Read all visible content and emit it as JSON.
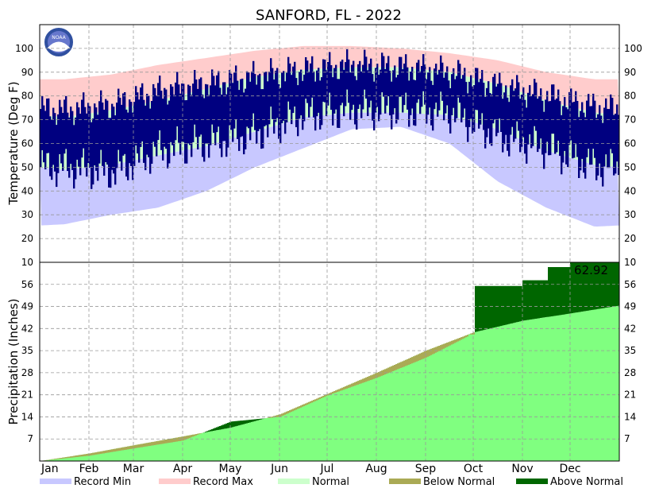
{
  "chart_data": [
    {
      "type": "area",
      "title": "SANFORD, FL - 2022",
      "ylabel": "Temperature (Deg F)",
      "xlabel": "",
      "ylim": [
        10,
        110
      ],
      "y_ticks": [
        20,
        30,
        40,
        50,
        60,
        70,
        80,
        90,
        100
      ],
      "grid": true,
      "months": [
        "Jan",
        "Feb",
        "Mar",
        "Apr",
        "May",
        "Jun",
        "Jul",
        "Aug",
        "Sep",
        "Oct",
        "Nov",
        "Dec"
      ],
      "month_normal_high": [
        71,
        74,
        78,
        83,
        88,
        91,
        92,
        92,
        90,
        85,
        78,
        73
      ],
      "month_normal_low": [
        49,
        51,
        55,
        59,
        65,
        71,
        73,
        73,
        72,
        66,
        57,
        51
      ],
      "month_record_high": [
        87,
        89,
        93,
        96,
        99,
        101,
        101,
        100,
        98,
        95,
        90,
        87
      ],
      "month_record_low": [
        26,
        30,
        33,
        40,
        50,
        58,
        66,
        67,
        60,
        44,
        33,
        25
      ],
      "month_actual_high": [
        74,
        76,
        82,
        85,
        88,
        91,
        93,
        92,
        90,
        84,
        80,
        75
      ],
      "month_actual_low": [
        50,
        48,
        57,
        60,
        64,
        72,
        74,
        74,
        73,
        63,
        58,
        50
      ]
    },
    {
      "type": "area",
      "ylabel": "Precipitation (Inches)",
      "xlabel": "",
      "ylim": [
        0,
        63
      ],
      "y_ticks": [
        7,
        14,
        21,
        28,
        35,
        42,
        49,
        56
      ],
      "grid": true,
      "x_ticks": [
        "Jan",
        "Feb",
        "Mar",
        "Apr",
        "May",
        "Jun",
        "Jul",
        "Aug",
        "Sep",
        "Oct",
        "Nov",
        "Dec"
      ],
      "annotation": "62.92",
      "series": [
        {
          "name": "Normal",
          "values": [
            0,
            2.4,
            5.0,
            7.8,
            10.6,
            14.8,
            21.3,
            28.0,
            35.0,
            40.8,
            44.5,
            46.8,
            49.3
          ]
        },
        {
          "name": "Observed",
          "values": [
            0,
            1.7,
            4.0,
            6.5,
            12.5,
            14.0,
            20.8,
            26.4,
            32.8,
            40.5,
            57.0,
            63.0,
            63.0
          ]
        }
      ],
      "cumulative_day_points": [
        0,
        31,
        59,
        90,
        120,
        151,
        181,
        212,
        243,
        273,
        304,
        334,
        365
      ]
    }
  ],
  "legend": {
    "items": [
      {
        "label": "Record Min",
        "color": "#c8c8ff"
      },
      {
        "label": "Record Max",
        "color": "#ffcccc"
      },
      {
        "label": "Normal",
        "color": "#ccffcc"
      },
      {
        "label": "Below Normal",
        "color": "#aaaa55"
      },
      {
        "label": "Above Normal",
        "color": "#006600"
      }
    ]
  },
  "colors": {
    "actual": "#000080",
    "precip_normal": "#80ff80",
    "precip_below": "#aaaa55",
    "precip_above": "#006600",
    "grid": "#999999"
  },
  "icons": {
    "logo": "noaa-logo-icon"
  },
  "logo_text": "NOAA"
}
